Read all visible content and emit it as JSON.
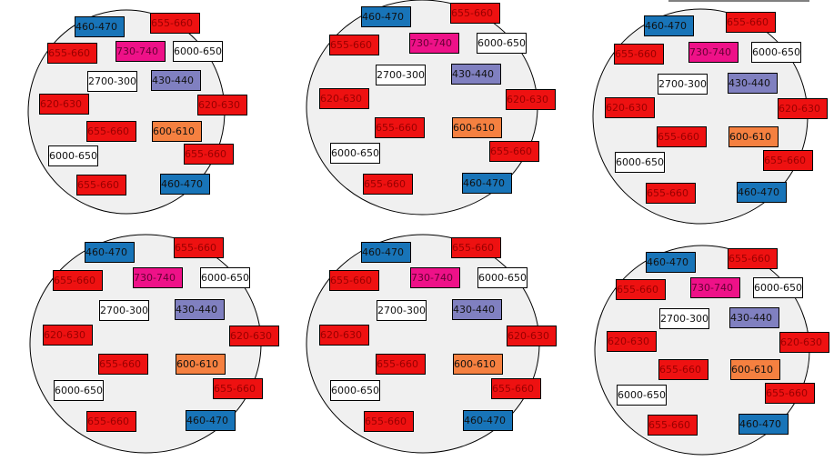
{
  "label_colors": [
    "#1874b8",
    "#ee1111",
    "#ee1111",
    "#ee1188",
    "#ffffff",
    "#ffffff",
    "#8080c0",
    "#ee1111",
    "#ee1111",
    "#ee1111",
    "#f58040",
    "#ffffff",
    "#ee1111",
    "#ee1111",
    "#1874b8"
  ],
  "circles": [
    {
      "labels": [
        "460-470",
        "655-660",
        "655-660",
        "730-740",
        "6000-650",
        "2700-300",
        "430-440",
        "620-630",
        "620-630",
        "655-660",
        "600-610",
        "6000-650",
        "655-660",
        "655-660",
        "460-470"
      ]
    },
    {
      "labels": [
        "460-470",
        "655-660",
        "655-660",
        "730-740",
        "6000-650",
        "2700-300",
        "430-440",
        "620-630",
        "620-630",
        "655-660",
        "600-610",
        "6000-650",
        "655-660",
        "655-660",
        "460-470"
      ]
    },
    {
      "labels": [
        "460-470",
        "655-660",
        "655-660",
        "730-740",
        "6000-650",
        "2700-300",
        "430-440",
        "620-630",
        "620-630",
        "655-660",
        "600-610",
        "6000-650",
        "655-660",
        "655-660",
        "460-470"
      ]
    },
    {
      "labels": [
        "460-470",
        "655-660",
        "655-660",
        "730-740",
        "6000-650",
        "2700-300",
        "430-440",
        "620-630",
        "620-630",
        "655-660",
        "600-610",
        "6000-650",
        "655-660",
        "655-660",
        "460-470"
      ]
    },
    {
      "labels": [
        "460-470",
        "655-660",
        "655-660",
        "730-740",
        "6000-650",
        "2700-300",
        "430-440",
        "620-630",
        "620-630",
        "655-660",
        "600-610",
        "6000-650",
        "655-660",
        "655-660",
        "460-470"
      ]
    },
    {
      "labels": [
        "460-470",
        "655-660",
        "655-660",
        "730-740",
        "6000-650",
        "2700-300",
        "430-440",
        "620-630",
        "620-630",
        "655-660",
        "600-610",
        "6000-650",
        "655-660",
        "655-660",
        "460-470"
      ]
    }
  ]
}
